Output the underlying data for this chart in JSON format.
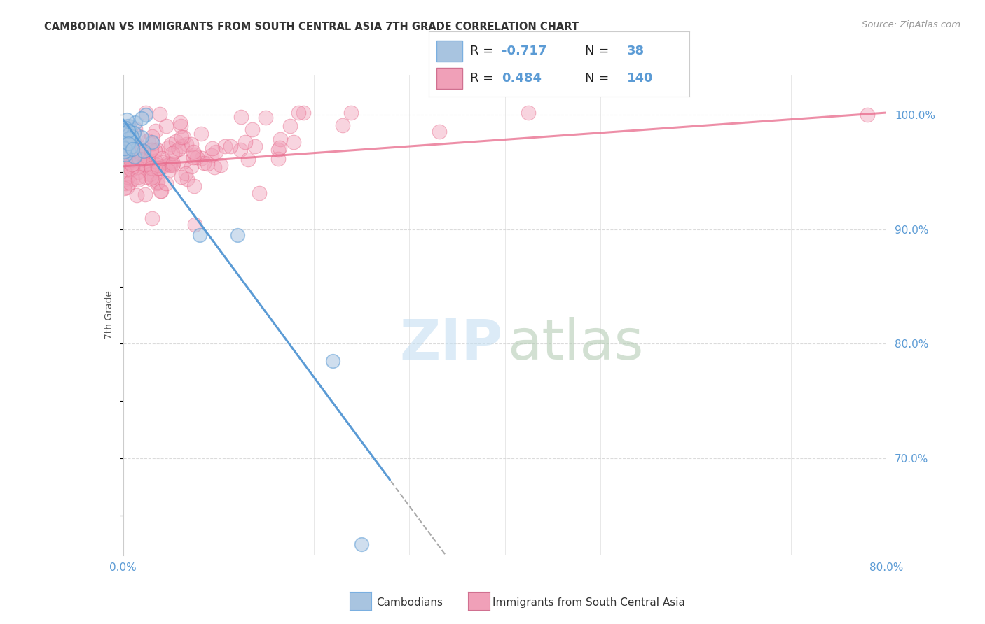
{
  "title": "CAMBODIAN VS IMMIGRANTS FROM SOUTH CENTRAL ASIA 7TH GRADE CORRELATION CHART",
  "source": "Source: ZipAtlas.com",
  "ylabel": "7th Grade",
  "ytick_labels": [
    "100.0%",
    "90.0%",
    "80.0%",
    "70.0%"
  ],
  "ytick_values": [
    1.0,
    0.9,
    0.8,
    0.7
  ],
  "xmin": 0.0,
  "xmax": 0.8,
  "ymin": 0.615,
  "ymax": 1.035,
  "R_cambodian": -0.717,
  "N_cambodian": 38,
  "R_south_central": 0.484,
  "N_south_central": 140,
  "blue_color": "#5b9bd5",
  "pink_color": "#e8688a",
  "pink_fill": "#f0a0b8",
  "blue_fill": "#a8c4e0",
  "legend_box_blue": "#a8c4e0",
  "legend_box_pink": "#f0a0b8",
  "watermark_zip_color": "#c8dff0",
  "watermark_atlas_color": "#b8d4b8",
  "background_color": "#ffffff",
  "grid_color": "#d8d8d8",
  "title_color": "#333333",
  "source_color": "#999999",
  "axis_tick_color": "#5b9bd5",
  "ylabel_color": "#555555",
  "legend_text_color": "#222222",
  "legend_value_color": "#5b9bd5"
}
